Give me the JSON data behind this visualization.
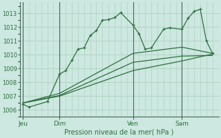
{
  "title": "Pression niveau de la mer( hPa )",
  "bg_color": "#cce8e0",
  "grid_color": "#aaccbb",
  "line_color": "#2d6e3e",
  "ylim": [
    1005.5,
    1013.8
  ],
  "yticks": [
    1006,
    1007,
    1008,
    1009,
    1010,
    1011,
    1012,
    1013
  ],
  "day_labels": [
    "Jeu",
    "Dim",
    "Ven",
    "Sam"
  ],
  "day_positions": [
    0,
    6,
    18,
    26
  ],
  "xlim": [
    -0.5,
    32
  ],
  "series1_x": [
    0,
    1,
    4,
    6,
    7,
    8,
    9,
    10,
    11,
    12,
    13,
    14,
    15,
    16,
    18,
    19,
    20,
    21,
    23,
    24,
    26,
    27,
    28,
    29,
    30,
    31
  ],
  "series1_y": [
    1006.4,
    1006.2,
    1006.6,
    1008.6,
    1008.85,
    1009.6,
    1010.4,
    1010.5,
    1011.4,
    1011.75,
    1012.5,
    1012.55,
    1012.7,
    1013.05,
    1012.15,
    1011.5,
    1010.4,
    1010.5,
    1011.85,
    1011.95,
    1011.85,
    1012.65,
    1013.15,
    1013.3,
    1011.0,
    1010.1
  ],
  "series2_x": [
    0,
    6,
    18,
    26,
    31
  ],
  "series2_y": [
    1006.5,
    1007.2,
    1010.1,
    1010.55,
    1010.1
  ],
  "series3_x": [
    0,
    6,
    18,
    26,
    31
  ],
  "series3_y": [
    1006.5,
    1007.05,
    1009.45,
    1009.9,
    1009.95
  ],
  "series4_x": [
    0,
    6,
    18,
    26,
    31
  ],
  "series4_y": [
    1006.5,
    1007.0,
    1008.85,
    1009.55,
    1010.05
  ]
}
